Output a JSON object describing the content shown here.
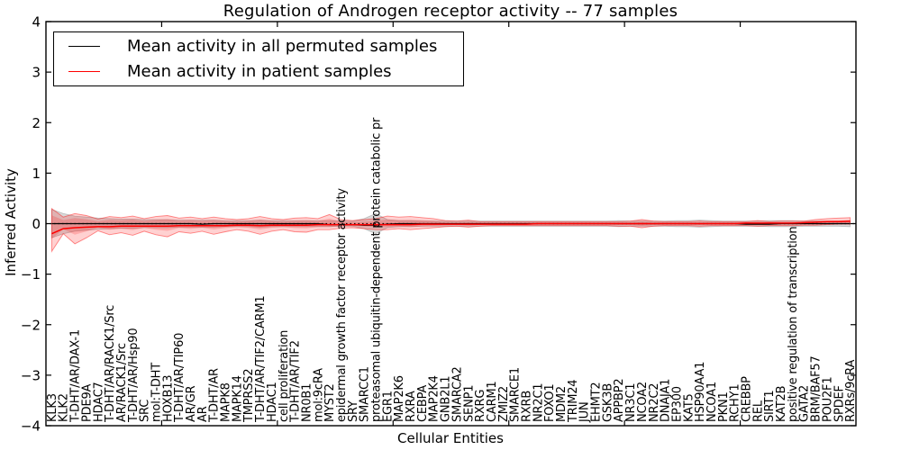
{
  "chart": {
    "title": "Regulation of Androgen receptor activity -- 77 samples",
    "xlabel": "Cellular Entities",
    "ylabel": "Inferred Activity",
    "legend": [
      {
        "label": "Mean activity in all permuted samples",
        "color": "#000000"
      },
      {
        "label": "Mean activity in patient samples",
        "color": "#ff0000"
      }
    ]
  },
  "chart_data": {
    "type": "line",
    "title": "Regulation of Androgen receptor activity -- 77 samples",
    "xlabel": "Cellular Entities",
    "ylabel": "Inferred Activity",
    "ylim": [
      -4,
      4
    ],
    "yticks": [
      -4,
      -3,
      -2,
      -1,
      0,
      1,
      2,
      3,
      4
    ],
    "grid": false,
    "legend_position": "upper left",
    "zero_reference_line": 0,
    "colors": {
      "permuted_line": "#000000",
      "patient_line": "#ff0000",
      "patient_band_fill": "rgba(255,0,0,0.18)",
      "patient_band_edge": "rgba(255,0,0,0.45)",
      "permuted_band_fill": "rgba(128,128,128,0.30)",
      "permuted_band_edge": "rgba(128,128,128,0.45)"
    },
    "categories": [
      "KLK3",
      "KLK2",
      "T-DHT/AR/DAX-1",
      "PDE9A",
      "HDAC7",
      "T-DHT/AR/RACK1/Src",
      "AR/RACK1/Src",
      "T-DHT/AR/Hsp90",
      "SRC",
      "mol:T-DHT",
      "HOXB13",
      "T-DHT/AR/TIP60",
      "AR/GR",
      "AR",
      "T-DHT/AR",
      "MAPK8",
      "MAPK14",
      "TMPRSS2",
      "T-DHT/AR/TIF2/CARM1",
      "HDAC1",
      "cell proliferation",
      "T-DHT/AR/TIF2",
      "NR0B1",
      "mol:9cRA",
      "MYST2",
      "epidermal growth factor receptor activity",
      "SRY",
      "SMARCC1",
      "proteasomal ubiquitin-dependent protein catabolic pr",
      "EGR1",
      "MAP2K6",
      "RXRA",
      "CEBPA",
      "MAP2K4",
      "GNB2L1",
      "SMARCA2",
      "SENP1",
      "RXRG",
      "CARM1",
      "ZMIZ2",
      "SMARCE1",
      "RXRB",
      "NR2C1",
      "FOXO1",
      "MDM2",
      "TRIM24",
      "JUN",
      "EHMT2",
      "GSK3B",
      "APPBP2",
      "NR3C1",
      "NCOA2",
      "NR2C2",
      "DNAJA1",
      "EP300",
      "KAT5",
      "HSP90AA1",
      "NCOA1",
      "PKN1",
      "RCHY1",
      "CREBBP",
      "REL",
      "SIRT1",
      "KAT2B",
      "positive regulation of transcription",
      "GATA2",
      "BRM/BAF57",
      "POU2F1",
      "SPDEF",
      "RXRs/9cRA"
    ],
    "series": [
      {
        "name": "Mean activity in all permuted samples",
        "color": "#000000",
        "values": [
          0,
          0,
          0,
          0,
          0,
          0,
          0,
          0,
          0,
          0,
          0,
          0,
          0,
          -0.01,
          0,
          0,
          0,
          0,
          0,
          0,
          0,
          0,
          0,
          0,
          -0.02,
          -0.02,
          -0.02,
          -0.03,
          -0.03,
          -0.01,
          0,
          0,
          0,
          0,
          0,
          0,
          0,
          0,
          0,
          0,
          0,
          0,
          0,
          0,
          0,
          0,
          0,
          0,
          0,
          0,
          0,
          0,
          0,
          0,
          0,
          0,
          0,
          0,
          0,
          0,
          -0.01,
          -0.01,
          -0.01,
          0,
          0,
          0,
          0,
          0,
          0,
          0
        ]
      },
      {
        "name": "Mean activity in patient samples",
        "color": "#ff0000",
        "values": [
          -0.2,
          -0.1,
          -0.08,
          -0.07,
          -0.06,
          -0.06,
          -0.05,
          -0.05,
          -0.05,
          -0.05,
          -0.05,
          -0.04,
          -0.04,
          -0.04,
          -0.04,
          -0.04,
          -0.03,
          -0.03,
          -0.04,
          -0.03,
          -0.03,
          -0.03,
          -0.03,
          -0.02,
          -0.02,
          -0.02,
          -0.02,
          -0.02,
          -0.02,
          -0.02,
          -0.02,
          -0.02,
          -0.01,
          -0.01,
          -0.01,
          -0.01,
          -0.01,
          -0.01,
          -0.01,
          -0.01,
          -0.01,
          -0.01,
          0.0,
          0.0,
          0.0,
          0.0,
          0.0,
          0.0,
          0.0,
          0.0,
          0.0,
          0.0,
          0.0,
          0.0,
          0.0,
          0.0,
          0.0,
          0.0,
          0.0,
          0.0,
          0.01,
          0.01,
          0.01,
          0.01,
          0.01,
          0.02,
          0.03,
          0.04,
          0.04,
          0.05
        ]
      }
    ],
    "bands": [
      {
        "name": "patient samples range",
        "color": "#ff0000",
        "upper": [
          0.3,
          0.13,
          0.2,
          0.16,
          0.09,
          0.14,
          0.12,
          0.15,
          0.1,
          0.14,
          0.16,
          0.11,
          0.13,
          0.1,
          0.13,
          0.1,
          0.08,
          0.1,
          0.14,
          0.1,
          0.08,
          0.11,
          0.12,
          0.1,
          0.18,
          0.08,
          0.06,
          0.08,
          0.1,
          0.15,
          0.13,
          0.14,
          0.12,
          0.1,
          0.06,
          0.05,
          0.07,
          0.04,
          0.04,
          0.04,
          0.04,
          0.04,
          0.04,
          0.04,
          0.04,
          0.04,
          0.04,
          0.04,
          0.04,
          0.04,
          0.05,
          0.08,
          0.05,
          0.04,
          0.04,
          0.04,
          0.05,
          0.04,
          0.04,
          0.04,
          0.04,
          0.06,
          0.04,
          0.05,
          0.05,
          0.05,
          0.08,
          0.1,
          0.11,
          0.12
        ],
        "lower": [
          -0.55,
          -0.2,
          -0.4,
          -0.28,
          -0.14,
          -0.22,
          -0.18,
          -0.23,
          -0.15,
          -0.22,
          -0.26,
          -0.16,
          -0.19,
          -0.15,
          -0.21,
          -0.16,
          -0.12,
          -0.15,
          -0.21,
          -0.15,
          -0.12,
          -0.16,
          -0.17,
          -0.12,
          -0.12,
          -0.09,
          -0.08,
          -0.1,
          -0.12,
          -0.12,
          -0.1,
          -0.12,
          -0.1,
          -0.08,
          -0.06,
          -0.05,
          -0.07,
          -0.05,
          -0.04,
          -0.04,
          -0.04,
          -0.04,
          -0.04,
          -0.04,
          -0.04,
          -0.04,
          -0.04,
          -0.04,
          -0.04,
          -0.05,
          -0.05,
          -0.08,
          -0.05,
          -0.04,
          -0.04,
          -0.04,
          -0.05,
          -0.04,
          -0.04,
          -0.04,
          -0.04,
          -0.05,
          -0.04,
          -0.04,
          -0.04,
          -0.03,
          -0.03,
          -0.02,
          -0.01,
          -0.01
        ]
      },
      {
        "name": "permuted samples range",
        "color": "#808080",
        "half_width": [
          0.28,
          0.2,
          0.15,
          0.13,
          0.11,
          0.1,
          0.09,
          0.09,
          0.08,
          0.08,
          0.08,
          0.07,
          0.07,
          0.07,
          0.07,
          0.06,
          0.06,
          0.06,
          0.07,
          0.06,
          0.06,
          0.06,
          0.06,
          0.06,
          0.06,
          0.05,
          0.05,
          0.1,
          0.2,
          0.08,
          0.06,
          0.06,
          0.05,
          0.05,
          0.05,
          0.05,
          0.05,
          0.05,
          0.05,
          0.05,
          0.05,
          0.05,
          0.05,
          0.05,
          0.05,
          0.05,
          0.05,
          0.05,
          0.05,
          0.06,
          0.05,
          0.05,
          0.05,
          0.05,
          0.06,
          0.06,
          0.07,
          0.06,
          0.05,
          0.05,
          0.05,
          0.05,
          0.06,
          0.06,
          0.06,
          0.05,
          0.05,
          0.05,
          0.05,
          0.06
        ]
      }
    ]
  }
}
